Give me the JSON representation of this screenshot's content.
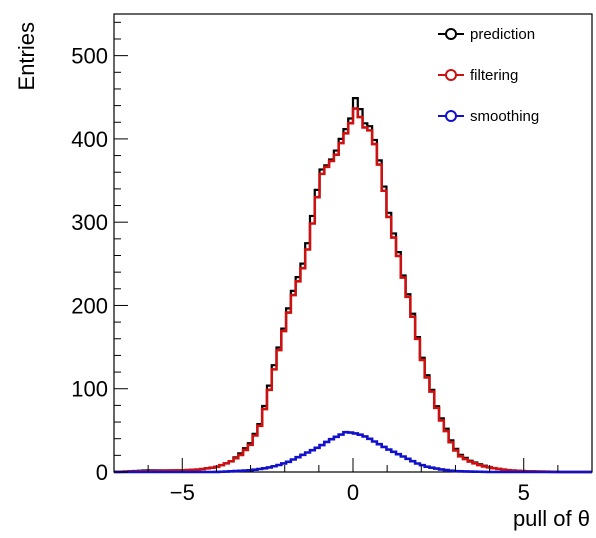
{
  "chart_data": {
    "type": "line",
    "title": "",
    "xlabel": "pull of θ",
    "ylabel": "Entries",
    "xlim": [
      -7,
      7
    ],
    "ylim": [
      0,
      550
    ],
    "x_ticks": [
      -5,
      0,
      5
    ],
    "x_tick_labels": [
      "−5",
      "0",
      "5"
    ],
    "y_ticks": [
      0,
      100,
      200,
      300,
      400,
      500
    ],
    "y_tick_labels": [
      "0",
      "100",
      "200",
      "300",
      "400",
      "500"
    ],
    "grid": false,
    "legend_position": "top-right",
    "bin_width": 0.14,
    "series": [
      {
        "name": "prediction",
        "color": "#000000",
        "points": [
          [
            -7.0,
            0
          ],
          [
            -6.0,
            2
          ],
          [
            -5.0,
            2
          ],
          [
            -4.5,
            3
          ],
          [
            -4.0,
            6
          ],
          [
            -3.6,
            12
          ],
          [
            -3.3,
            22
          ],
          [
            -3.0,
            35
          ],
          [
            -2.7,
            60
          ],
          [
            -2.5,
            95
          ],
          [
            -2.3,
            130
          ],
          [
            -2.1,
            160
          ],
          [
            -1.9,
            195
          ],
          [
            -1.7,
            225
          ],
          [
            -1.5,
            245
          ],
          [
            -1.3,
            280
          ],
          [
            -1.1,
            330
          ],
          [
            -0.9,
            365
          ],
          [
            -0.7,
            370
          ],
          [
            -0.5,
            385
          ],
          [
            -0.3,
            405
          ],
          [
            -0.1,
            420
          ],
          [
            0.0,
            435
          ],
          [
            0.1,
            455
          ],
          [
            0.3,
            420
          ],
          [
            0.5,
            415
          ],
          [
            0.7,
            390
          ],
          [
            0.9,
            345
          ],
          [
            1.1,
            300
          ],
          [
            1.3,
            270
          ],
          [
            1.5,
            230
          ],
          [
            1.7,
            200
          ],
          [
            1.9,
            160
          ],
          [
            2.1,
            125
          ],
          [
            2.3,
            100
          ],
          [
            2.5,
            72
          ],
          [
            2.7,
            55
          ],
          [
            2.9,
            35
          ],
          [
            3.1,
            22
          ],
          [
            3.4,
            14
          ],
          [
            3.8,
            8
          ],
          [
            4.2,
            4
          ],
          [
            4.6,
            2
          ],
          [
            5.0,
            1
          ],
          [
            6.0,
            0
          ],
          [
            7.0,
            0
          ]
        ]
      },
      {
        "name": "filtering",
        "color": "#cc1111",
        "points": [
          [
            -7.0,
            0
          ],
          [
            -6.0,
            1
          ],
          [
            -5.0,
            2
          ],
          [
            -4.5,
            3
          ],
          [
            -4.0,
            6
          ],
          [
            -3.6,
            12
          ],
          [
            -3.3,
            20
          ],
          [
            -3.0,
            33
          ],
          [
            -2.7,
            58
          ],
          [
            -2.5,
            90
          ],
          [
            -2.3,
            125
          ],
          [
            -2.1,
            158
          ],
          [
            -1.9,
            190
          ],
          [
            -1.7,
            220
          ],
          [
            -1.5,
            240
          ],
          [
            -1.3,
            272
          ],
          [
            -1.1,
            320
          ],
          [
            -0.9,
            360
          ],
          [
            -0.7,
            370
          ],
          [
            -0.5,
            380
          ],
          [
            -0.3,
            400
          ],
          [
            -0.1,
            415
          ],
          [
            0.0,
            428
          ],
          [
            0.1,
            440
          ],
          [
            0.3,
            415
          ],
          [
            0.5,
            410
          ],
          [
            0.7,
            385
          ],
          [
            0.9,
            340
          ],
          [
            1.1,
            295
          ],
          [
            1.3,
            265
          ],
          [
            1.5,
            228
          ],
          [
            1.7,
            196
          ],
          [
            1.9,
            158
          ],
          [
            2.1,
            122
          ],
          [
            2.3,
            98
          ],
          [
            2.5,
            70
          ],
          [
            2.7,
            52
          ],
          [
            2.9,
            33
          ],
          [
            3.1,
            20
          ],
          [
            3.4,
            13
          ],
          [
            3.8,
            7
          ],
          [
            4.2,
            4
          ],
          [
            4.6,
            2
          ],
          [
            5.0,
            1
          ],
          [
            6.0,
            0
          ],
          [
            7.0,
            0
          ]
        ]
      },
      {
        "name": "smoothing",
        "color": "#1111cc",
        "points": [
          [
            -7.0,
            0
          ],
          [
            -4.0,
            0
          ],
          [
            -3.5,
            1
          ],
          [
            -3.0,
            2
          ],
          [
            -2.5,
            5
          ],
          [
            -2.2,
            8
          ],
          [
            -1.9,
            12
          ],
          [
            -1.6,
            18
          ],
          [
            -1.3,
            24
          ],
          [
            -1.0,
            30
          ],
          [
            -0.7,
            38
          ],
          [
            -0.4,
            44
          ],
          [
            -0.2,
            48
          ],
          [
            0.0,
            47
          ],
          [
            0.2,
            45
          ],
          [
            0.4,
            42
          ],
          [
            0.7,
            35
          ],
          [
            1.0,
            28
          ],
          [
            1.3,
            22
          ],
          [
            1.6,
            16
          ],
          [
            1.9,
            10
          ],
          [
            2.2,
            6
          ],
          [
            2.6,
            3
          ],
          [
            3.0,
            1
          ],
          [
            4.0,
            0
          ],
          [
            7.0,
            0
          ]
        ]
      }
    ]
  }
}
